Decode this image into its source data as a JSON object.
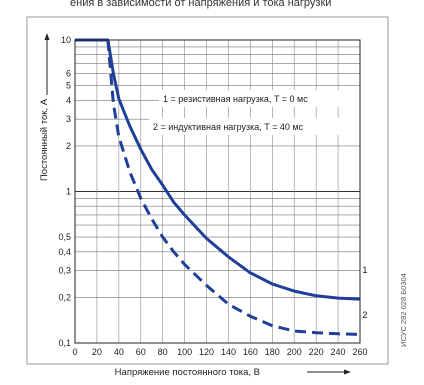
{
  "header_text": "ения в зависимости от напряжения и тока нагрузки",
  "side_code": "ИСУС 282 028 Б0304",
  "chart_data": {
    "type": "line",
    "title": "",
    "xlabel": "Напряжение постоянного тока, В",
    "ylabel": "Постоянный ток, А",
    "xlim": [
      0,
      260
    ],
    "ylim": [
      0.1,
      10
    ],
    "yscale": "log",
    "grid": true,
    "x_ticks": [
      "0",
      "20",
      "40",
      "60",
      "80",
      "100",
      "120",
      "140",
      "160",
      "180",
      "200",
      "220",
      "240",
      "260"
    ],
    "y_ticks": [
      {
        "label": "0,1",
        "value": 0.1
      },
      {
        "label": "0,2",
        "value": 0.2
      },
      {
        "label": "0,3",
        "value": 0.3
      },
      {
        "label": "0,4",
        "value": 0.4
      },
      {
        "label": "0,5",
        "value": 0.5
      },
      {
        "label": "1",
        "value": 1
      },
      {
        "label": "2",
        "value": 2
      },
      {
        "label": "3",
        "value": 3
      },
      {
        "label": "4",
        "value": 4
      },
      {
        "label": "5",
        "value": 5
      },
      {
        "label": "6",
        "value": 6
      },
      {
        "label": "10",
        "value": 10
      }
    ],
    "legend": [
      "1 = резистивная нагрузка, T = 0 мс",
      "2 = индуктивная нагрузка, T = 40 мс"
    ],
    "series": [
      {
        "label": "1",
        "style": "solid",
        "color": "#1f3f99",
        "x": [
          0,
          30,
          35,
          40,
          50,
          60,
          70,
          80,
          90,
          100,
          120,
          140,
          160,
          180,
          200,
          220,
          240,
          260
        ],
        "y": [
          10,
          10,
          6.0,
          4.1,
          2.7,
          1.9,
          1.4,
          1.1,
          0.85,
          0.7,
          0.49,
          0.37,
          0.29,
          0.245,
          0.22,
          0.205,
          0.198,
          0.195
        ]
      },
      {
        "label": "2",
        "style": "dashed",
        "color": "#1f3f99",
        "x": [
          30,
          35,
          40,
          50,
          60,
          70,
          80,
          90,
          100,
          120,
          140,
          160,
          180,
          200,
          220,
          240,
          260
        ],
        "y": [
          10,
          3.8,
          2.3,
          1.35,
          0.9,
          0.66,
          0.5,
          0.4,
          0.33,
          0.24,
          0.18,
          0.15,
          0.13,
          0.12,
          0.117,
          0.115,
          0.114
        ]
      }
    ]
  }
}
